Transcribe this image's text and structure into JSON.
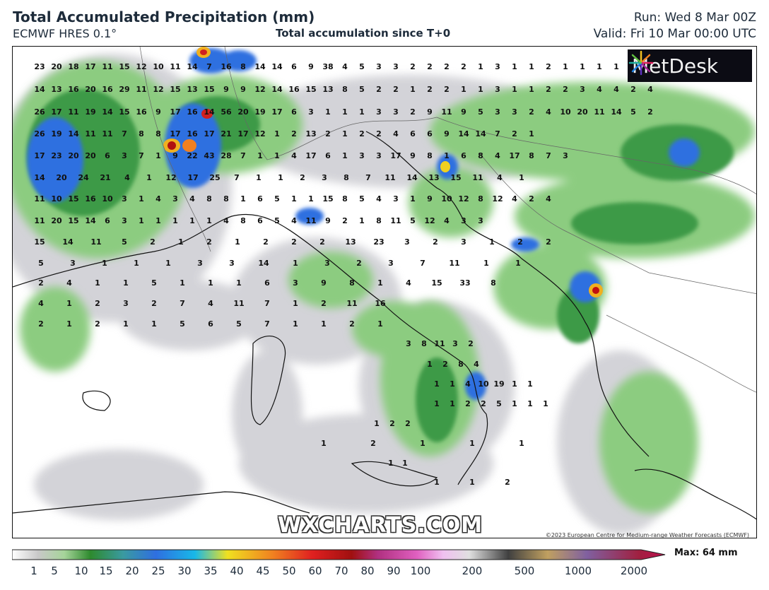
{
  "header": {
    "title": "Total Accumulated Precipitation (mm)",
    "model": "ECMWF HRES 0.1°",
    "accumulation": "Total accumulation since T+0",
    "run": "Run: Wed 8 Mar 00Z",
    "valid": "Valid: Fri 10 Mar 00:00 UTC"
  },
  "logo": {
    "text": "MetDesk",
    "icon": "metdesk-starburst-icon"
  },
  "watermark": "WXCHARTS.COM",
  "copyright": "©2023 European Centre for Medium-range Weather Forecasts (ECMWF)",
  "scale": {
    "labels": [
      "1",
      "5",
      "10",
      "15",
      "20",
      "25",
      "30",
      "35",
      "40",
      "45",
      "50",
      "60",
      "70",
      "80",
      "90",
      "100",
      "200",
      "500",
      "1000",
      "2000"
    ],
    "max": "Max: 64 mm"
  },
  "map_values": {
    "rows": [
      [
        "23",
        "20",
        "18",
        "17",
        "11",
        "15",
        "12",
        "10",
        "11",
        "14",
        "7",
        "16",
        "8",
        "14",
        "14",
        "6",
        "9",
        "38",
        "4",
        "5",
        "3",
        "3",
        "2",
        "2",
        "2",
        "2",
        "1",
        "3",
        "1",
        "1",
        "2",
        "1",
        "1",
        "1",
        "1"
      ],
      [
        "14",
        "13",
        "16",
        "20",
        "16",
        "29",
        "11",
        "12",
        "15",
        "13",
        "15",
        "9",
        "9",
        "12",
        "14",
        "16",
        "15",
        "13",
        "8",
        "5",
        "2",
        "2",
        "1",
        "2",
        "2",
        "1",
        "1",
        "3",
        "1",
        "1",
        "2",
        "2",
        "3",
        "4",
        "4",
        "2",
        "4"
      ],
      [
        "26",
        "17",
        "11",
        "19",
        "14",
        "15",
        "16",
        "9",
        "17",
        "16",
        "14",
        "56",
        "20",
        "19",
        "17",
        "6",
        "3",
        "1",
        "1",
        "1",
        "3",
        "3",
        "2",
        "9",
        "11",
        "9",
        "5",
        "3",
        "3",
        "2",
        "4",
        "10",
        "20",
        "11",
        "14",
        "5",
        "2"
      ],
      [
        "26",
        "19",
        "14",
        "11",
        "11",
        "7",
        "8",
        "8",
        "17",
        "16",
        "17",
        "21",
        "17",
        "12",
        "1",
        "2",
        "13",
        "2",
        "1",
        "2",
        "2",
        "4",
        "6",
        "6",
        "9",
        "14",
        "14",
        "7",
        "2",
        "1"
      ],
      [
        "17",
        "23",
        "20",
        "20",
        "6",
        "3",
        "7",
        "1",
        "9",
        "22",
        "43",
        "28",
        "7",
        "1",
        "1",
        "4",
        "17",
        "6",
        "1",
        "3",
        "3",
        "17",
        "9",
        "8",
        "1",
        "6",
        "8",
        "4",
        "17",
        "8",
        "7",
        "3"
      ],
      [
        "14",
        "20",
        "24",
        "21",
        "4",
        "1",
        "12",
        "17",
        "25",
        "7",
        "1",
        "1",
        "2",
        "3",
        "8",
        "7",
        "11",
        "14",
        "13",
        "15",
        "11",
        "4",
        "1"
      ],
      [
        "11",
        "10",
        "15",
        "16",
        "10",
        "3",
        "1",
        "4",
        "3",
        "4",
        "8",
        "8",
        "1",
        "6",
        "5",
        "1",
        "1",
        "15",
        "8",
        "5",
        "4",
        "3",
        "1",
        "9",
        "10",
        "12",
        "8",
        "12",
        "4",
        "2",
        "4"
      ],
      [
        "11",
        "20",
        "15",
        "14",
        "6",
        "3",
        "1",
        "1",
        "1",
        "1",
        "1",
        "4",
        "8",
        "6",
        "5",
        "4",
        "11",
        "9",
        "2",
        "1",
        "8",
        "11",
        "5",
        "12",
        "4",
        "3",
        "3"
      ],
      [
        "15",
        "14",
        "11",
        "5",
        "2",
        "1",
        "2",
        "1",
        "2",
        "2",
        "2",
        "13",
        "23",
        "3",
        "2",
        "3",
        "1",
        "2",
        "2"
      ],
      [
        "5",
        "3",
        "1",
        "1",
        "1",
        "3",
        "3",
        "14",
        "1",
        "3",
        "2",
        "3",
        "7",
        "11",
        "1",
        "1"
      ],
      [
        "2",
        "4",
        "1",
        "1",
        "5",
        "1",
        "1",
        "1",
        "6",
        "3",
        "9",
        "8",
        "1",
        "4",
        "15",
        "33",
        "8"
      ],
      [
        "4",
        "1",
        "2",
        "3",
        "2",
        "7",
        "4",
        "11",
        "7",
        "1",
        "2",
        "11",
        "16"
      ],
      [
        "2",
        "1",
        "2",
        "1",
        "1",
        "5",
        "6",
        "5",
        "7",
        "1",
        "1",
        "2",
        "1"
      ],
      [
        "3",
        "8",
        "11",
        "3",
        "2"
      ],
      [
        "1",
        "2",
        "8",
        "4"
      ],
      [
        "1",
        "1",
        "4",
        "10",
        "19",
        "1",
        "1"
      ],
      [
        "1",
        "1",
        "2",
        "2",
        "5",
        "1",
        "1",
        "1"
      ],
      [
        "1",
        "2",
        "2"
      ],
      [
        "1",
        "2",
        "1",
        "1",
        "1"
      ],
      [
        "1",
        "1"
      ],
      [
        "1",
        "1",
        "2"
      ]
    ]
  },
  "colors": {
    "precip_light": "#c8c8cc",
    "precip_green_light": "#a6d49a",
    "precip_green": "#4aa84a",
    "precip_green_dark": "#1e7a2e",
    "precip_blue": "#2f6fe0",
    "precip_cyan": "#18b8e8",
    "precip_yellow": "#f0d020",
    "precip_red": "#c01010"
  }
}
